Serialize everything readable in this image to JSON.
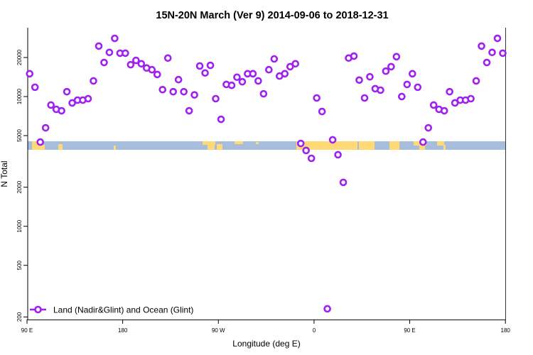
{
  "chart_data": {
    "type": "scatter",
    "title": "15N-20N March (Ver 9)   2014-09-06 to 2018-12-31",
    "xlabel": "Longitude (deg E)",
    "ylabel": "N Total",
    "y_scale": "log",
    "ylim": [
      190,
      36000
    ],
    "xlim_deg_east_unwrapped": [
      90,
      540
    ],
    "x_tick_labels": [
      "90 E",
      "180",
      "90 W",
      "0",
      "90 E",
      "180"
    ],
    "y_ticks": [
      200,
      500,
      1000,
      2000,
      5000,
      10000,
      20000
    ],
    "y_tick_labels": [
      "200",
      "500",
      "1000",
      "2000",
      "5000",
      "10000",
      "20000"
    ],
    "grid": false,
    "legend": {
      "position": "bottom-left",
      "entries": [
        "Land (Nadir&Glint) and Ocean (Glint)"
      ]
    },
    "colors": {
      "series": "#a020f0",
      "ocean": "#a6bddb",
      "land": "#fed976"
    },
    "series": [
      {
        "name": "Land (Nadir&Glint) and Ocean (Glint)",
        "lon": [
          92.5,
          97.5,
          102.5,
          107.5,
          112.5,
          117.5,
          122.5,
          127.5,
          132.5,
          137.5,
          142.5,
          147.5,
          152.5,
          157.5,
          162.5,
          167.5,
          172.5,
          177.5,
          -177.5,
          -172.5,
          -167.5,
          -162.5,
          -157.5,
          -152.5,
          -147.5,
          -142.5,
          -137.5,
          -132.5,
          -127.5,
          -122.5,
          -117.5,
          -112.5,
          -107.5,
          -102.5,
          -97.5,
          -92.5,
          -87.5,
          -82.5,
          -77.5,
          -72.5,
          -67.5,
          -62.5,
          -57.5,
          -52.5,
          -47.5,
          -42.5,
          -37.5,
          -32.5,
          -27.5,
          -22.5,
          -17.5,
          -12.5,
          -7.5,
          -2.5,
          2.5,
          7.5,
          12.5,
          17.5,
          22.5,
          27.5,
          32.5,
          37.5,
          42.5,
          47.5,
          52.5,
          57.5,
          62.5,
          67.5,
          72.5,
          77.5,
          82.5,
          87.5
        ],
        "values": [
          15000,
          11800,
          4460,
          5740,
          8600,
          7970,
          7770,
          10900,
          8930,
          9390,
          9390,
          9630,
          13200,
          24500,
          18300,
          21900,
          28100,
          21600,
          21600,
          17600,
          19000,
          17900,
          16600,
          16100,
          14800,
          11300,
          19800,
          10900,
          13500,
          10900,
          7770,
          10300,
          17200,
          15200,
          17400,
          9630,
          6680,
          12400,
          12200,
          14100,
          13000,
          15000,
          15000,
          13200,
          10500,
          16100,
          19500,
          14400,
          15000,
          17000,
          17900,
          4350,
          3840,
          3340,
          9750,
          7670,
          231,
          4640,
          3560,
          2180,
          19800,
          20500,
          13400,
          9750,
          14200,
          11500,
          11200,
          15700,
          17000,
          20300,
          10000,
          12400
        ]
      }
    ]
  }
}
